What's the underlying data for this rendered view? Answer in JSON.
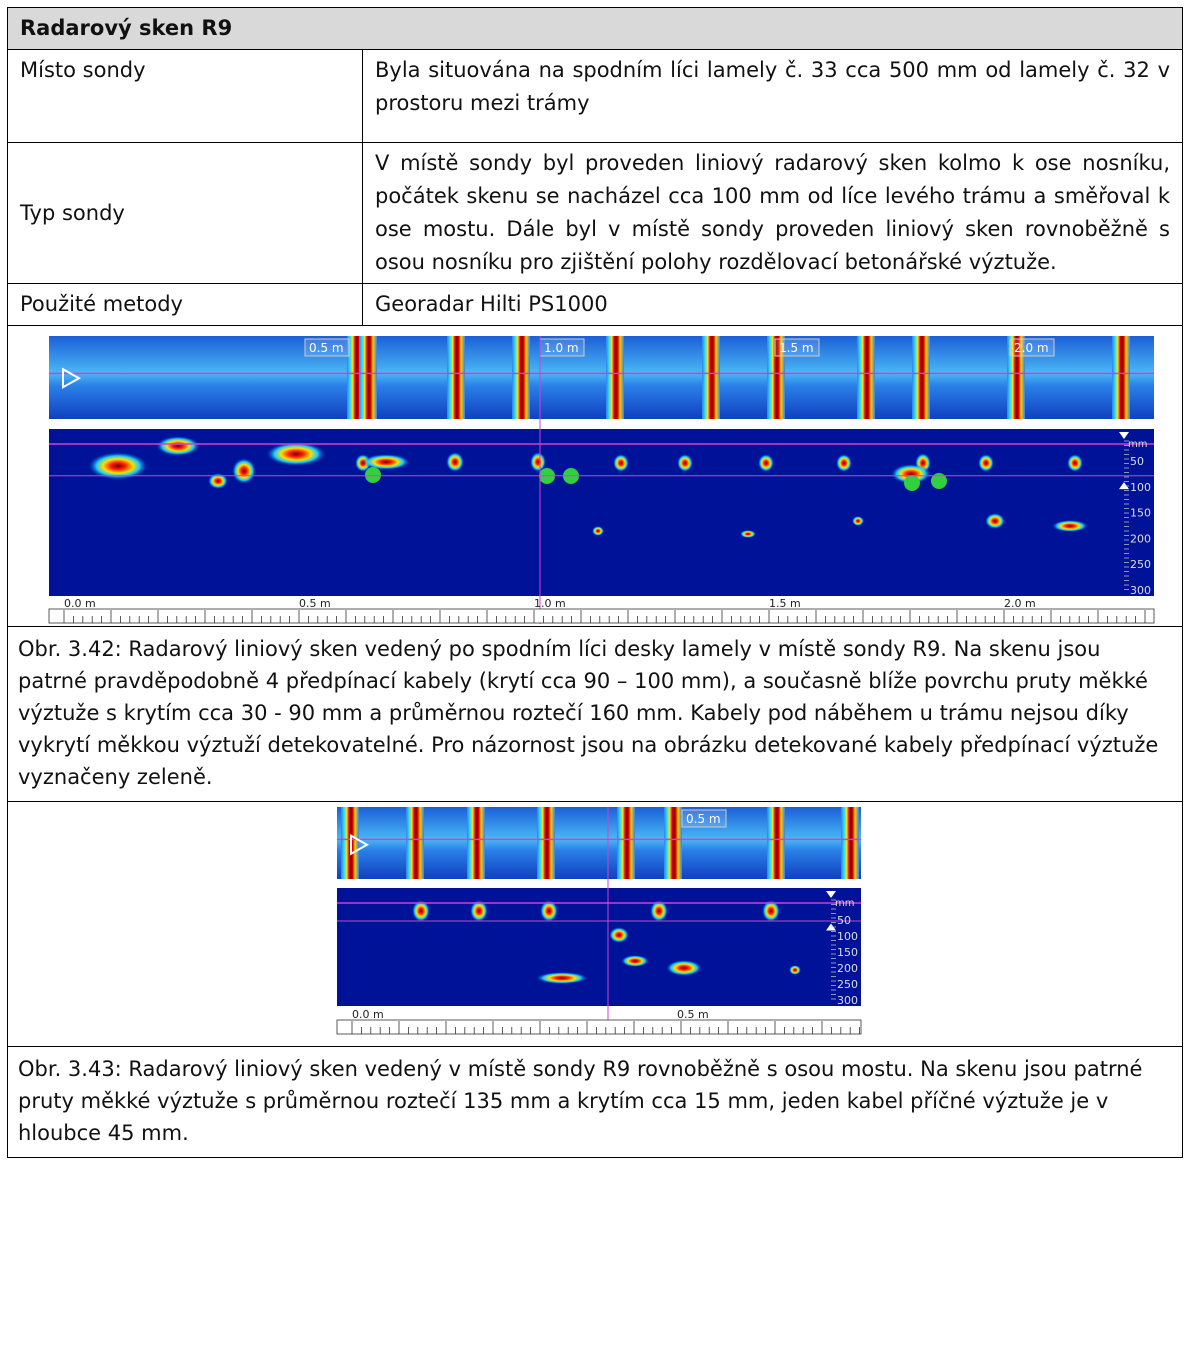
{
  "header": {
    "title": "Radarový sken R9"
  },
  "table": {
    "rows": [
      [
        "Místo sondy",
        "Byla situována na spodním líci lamely č. 33 cca 500 mm od lamely č. 32 v prostoru mezi trámy"
      ],
      [
        "Typ sondy",
        "V místě sondy byl proveden liniový radarový sken kolmo k ose nosníku, počátek skenu se nacházel cca 100 mm od líce levého trámu a směřoval k ose mostu. Dále byl v místě sondy proveden liniový sken rovnoběžně s osou nosníku pro zjištění polohy rozdělovací betonářské výztuže."
      ],
      [
        "Použité metody",
        "Georadar Hilti PS1000"
      ]
    ]
  },
  "figures": [
    {
      "top_labels": [
        "0.5 m",
        "1.0 m",
        "1.5 m",
        "2.0 m"
      ],
      "depth_unit": "mm",
      "depth_labels": [
        "50",
        "100",
        "150",
        "200",
        "250",
        "300"
      ],
      "ruler_labels": [
        "0.0 m",
        "0.5 m",
        "1.0 m",
        "1.5 m",
        "2.0 m"
      ],
      "caption": "Obr. 3.42: Radarový liniový sken vedený po spodním líci desky lamely v místě sondy R9. Na skenu jsou patrné pravděpodobně 4 předpínací kabely (krytí cca 90 – 100 mm), a současně blíže povrchu pruty měkké výztuže s krytím cca 30 - 90 mm a průměrnou roztečí 160 mm. Kabely pod náběhem u trámu nejsou díky vykrytí měkkou výztuží detekovatelné. Pro názornost jsou na obrázku detekované kabely předpínací výztuže vyznačeny zeleně."
    },
    {
      "top_labels": [
        "0.5 m"
      ],
      "depth_unit": "mm",
      "depth_labels": [
        "50",
        "100",
        "150",
        "200",
        "250",
        "300"
      ],
      "ruler_labels": [
        "0.0 m",
        "0.5 m"
      ],
      "caption": "Obr. 3.43: Radarový liniový sken vedený v místě sondy R9 rovnoběžně s osou mostu. Na skenu jsou patrné pruty měkké výztuže s průměrnou roztečí 135 mm a krytím cca 15 mm, jeden kabel příčné výztuže je v hloubce 45 mm."
    }
  ]
}
